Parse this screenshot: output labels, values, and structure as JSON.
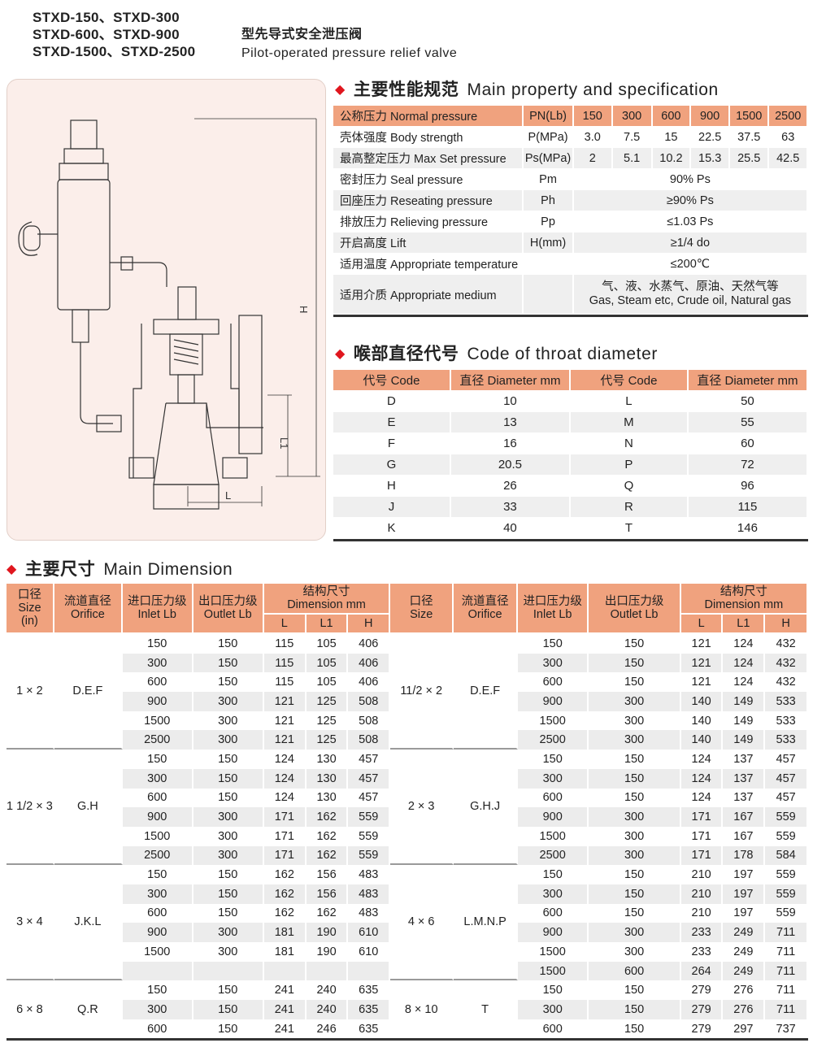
{
  "header": {
    "models": [
      "STXD-150、STXD-300",
      "STXD-600、STXD-900",
      "STXD-1500、STXD-2500"
    ],
    "title_cn": "型先导式安全泄压阀",
    "title_en": "Pilot-operated pressure relief valve"
  },
  "drawing": {
    "labels": {
      "H": "H",
      "L1": "L1",
      "L": "L"
    }
  },
  "spec": {
    "title_cn": "主要性能规范",
    "title_en": "Main property and specification",
    "header": [
      "公称压力 Normal pressure",
      "PN(Lb)",
      "150",
      "300",
      "600",
      "900",
      "1500",
      "2500"
    ],
    "rows": [
      {
        "label": "壳体强度 Body strength",
        "symbol": "P(MPa)",
        "values": [
          "3.0",
          "7.5",
          "15",
          "22.5",
          "37.5",
          "63"
        ]
      },
      {
        "label": "最高整定压力 Max Set pressure",
        "symbol": "Ps(MPa)",
        "values": [
          "2",
          "5.1",
          "10.2",
          "15.3",
          "25.5",
          "42.5"
        ]
      },
      {
        "label": "密封压力 Seal pressure",
        "symbol": "Pm",
        "value": "90%  Ps"
      },
      {
        "label": "回座压力 Reseating pressure",
        "symbol": "Ph",
        "value": "≥90%  Ps"
      },
      {
        "label": "排放压力 Relieving pressure",
        "symbol": "Pp",
        "value": "≤1.03  Ps"
      },
      {
        "label": "开启高度 Lift",
        "symbol": "H(mm)",
        "value": "≥1/4  do"
      },
      {
        "label": "适用温度 Appropriate temperature",
        "symbol": "",
        "value": "≤200℃"
      },
      {
        "label": "适用介质 Appropriate medium",
        "symbol": "",
        "value": "气、液、水蒸气、原油、天然气等",
        "value2": "Gas, Steam etc, Crude oil, Natural gas"
      }
    ]
  },
  "throat": {
    "title_cn": "喉部直径代号",
    "title_en": "Code of throat diameter",
    "header": [
      "代号 Code",
      "直径 Diameter mm",
      "代号 Code",
      "直径 Diameter mm"
    ],
    "rows": [
      [
        "D",
        "10",
        "L",
        "50"
      ],
      [
        "E",
        "13",
        "M",
        "55"
      ],
      [
        "F",
        "16",
        "N",
        "60"
      ],
      [
        "G",
        "20.5",
        "P",
        "72"
      ],
      [
        "H",
        "26",
        "Q",
        "96"
      ],
      [
        "J",
        "33",
        "R",
        "115"
      ],
      [
        "K",
        "40",
        "T",
        "146"
      ]
    ]
  },
  "dimension": {
    "title_cn": "主要尺寸",
    "title_en": "Main Dimension",
    "header_left": {
      "size": [
        "口径",
        "Size",
        "(in)"
      ],
      "orifice": [
        "流道直径",
        "Orifice"
      ],
      "inlet": [
        "进口压力级",
        "Inlet  Lb"
      ],
      "outlet": [
        "出口压力级",
        "Outlet  Lb"
      ],
      "dim": [
        "结构尺寸",
        "Dimension mm"
      ],
      "sub": [
        "L",
        "L1",
        "H"
      ]
    },
    "header_right": {
      "size": [
        "口径",
        "Size"
      ],
      "orifice": [
        "流道直径",
        "Orifice"
      ],
      "inlet": [
        "进口压力级",
        "Inlet  Lb"
      ],
      "outlet": [
        "出口压力级",
        "Outlet  Lb"
      ],
      "dim": [
        "结构尺寸",
        "Dimension mm"
      ],
      "sub": [
        "L",
        "L1",
        "H"
      ]
    },
    "left": [
      {
        "size": "1 × 2",
        "orifice": "D.E.F",
        "rows": [
          [
            "150",
            "150",
            "115",
            "105",
            "406"
          ],
          [
            "300",
            "150",
            "115",
            "105",
            "406"
          ],
          [
            "600",
            "150",
            "115",
            "105",
            "406"
          ],
          [
            "900",
            "300",
            "121",
            "125",
            "508"
          ],
          [
            "1500",
            "300",
            "121",
            "125",
            "508"
          ],
          [
            "2500",
            "300",
            "121",
            "125",
            "508"
          ]
        ]
      },
      {
        "size": "1 1/2 × 3",
        "orifice": "G.H",
        "rows": [
          [
            "150",
            "150",
            "124",
            "130",
            "457"
          ],
          [
            "300",
            "150",
            "124",
            "130",
            "457"
          ],
          [
            "600",
            "150",
            "124",
            "130",
            "457"
          ],
          [
            "900",
            "300",
            "171",
            "162",
            "559"
          ],
          [
            "1500",
            "300",
            "171",
            "162",
            "559"
          ],
          [
            "2500",
            "300",
            "171",
            "162",
            "559"
          ]
        ]
      },
      {
        "size": "3 × 4",
        "orifice": "J.K.L",
        "rows": [
          [
            "150",
            "150",
            "162",
            "156",
            "483"
          ],
          [
            "300",
            "150",
            "162",
            "156",
            "483"
          ],
          [
            "600",
            "150",
            "162",
            "162",
            "483"
          ],
          [
            "900",
            "300",
            "181",
            "190",
            "610"
          ],
          [
            "1500",
            "300",
            "181",
            "190",
            "610"
          ],
          [
            "",
            "",
            "",
            "",
            ""
          ]
        ]
      },
      {
        "size": "6 × 8",
        "orifice": "Q.R",
        "rows": [
          [
            "150",
            "150",
            "241",
            "240",
            "635"
          ],
          [
            "300",
            "150",
            "241",
            "240",
            "635"
          ],
          [
            "600",
            "150",
            "241",
            "246",
            "635"
          ]
        ]
      }
    ],
    "right": [
      {
        "size": "11/2 × 2",
        "orifice": "D.E.F",
        "rows": [
          [
            "150",
            "150",
            "121",
            "124",
            "432"
          ],
          [
            "300",
            "150",
            "121",
            "124",
            "432"
          ],
          [
            "600",
            "150",
            "121",
            "124",
            "432"
          ],
          [
            "900",
            "300",
            "140",
            "149",
            "533"
          ],
          [
            "1500",
            "300",
            "140",
            "149",
            "533"
          ],
          [
            "2500",
            "300",
            "140",
            "149",
            "533"
          ]
        ]
      },
      {
        "size": "2 × 3",
        "orifice": "G.H.J",
        "rows": [
          [
            "150",
            "150",
            "124",
            "137",
            "457"
          ],
          [
            "300",
            "150",
            "124",
            "137",
            "457"
          ],
          [
            "600",
            "150",
            "124",
            "137",
            "457"
          ],
          [
            "900",
            "300",
            "171",
            "167",
            "559"
          ],
          [
            "1500",
            "300",
            "171",
            "167",
            "559"
          ],
          [
            "2500",
            "300",
            "171",
            "178",
            "584"
          ]
        ]
      },
      {
        "size": "4 × 6",
        "orifice": "L.M.N.P",
        "rows": [
          [
            "150",
            "150",
            "210",
            "197",
            "559"
          ],
          [
            "300",
            "150",
            "210",
            "197",
            "559"
          ],
          [
            "600",
            "150",
            "210",
            "197",
            "559"
          ],
          [
            "900",
            "300",
            "233",
            "249",
            "711"
          ],
          [
            "1500",
            "300",
            "233",
            "249",
            "711"
          ],
          [
            "1500",
            "600",
            "264",
            "249",
            "711"
          ]
        ]
      },
      {
        "size": "8 × 10",
        "orifice": "T",
        "rows": [
          [
            "150",
            "150",
            "279",
            "276",
            "711"
          ],
          [
            "300",
            "150",
            "279",
            "276",
            "711"
          ],
          [
            "600",
            "150",
            "279",
            "297",
            "737"
          ]
        ]
      }
    ]
  },
  "colors": {
    "header_bg": "#f0a27e",
    "stripe": "#ececec",
    "bullet": "#e0161e",
    "drawing_bg": "#fbeeea"
  }
}
